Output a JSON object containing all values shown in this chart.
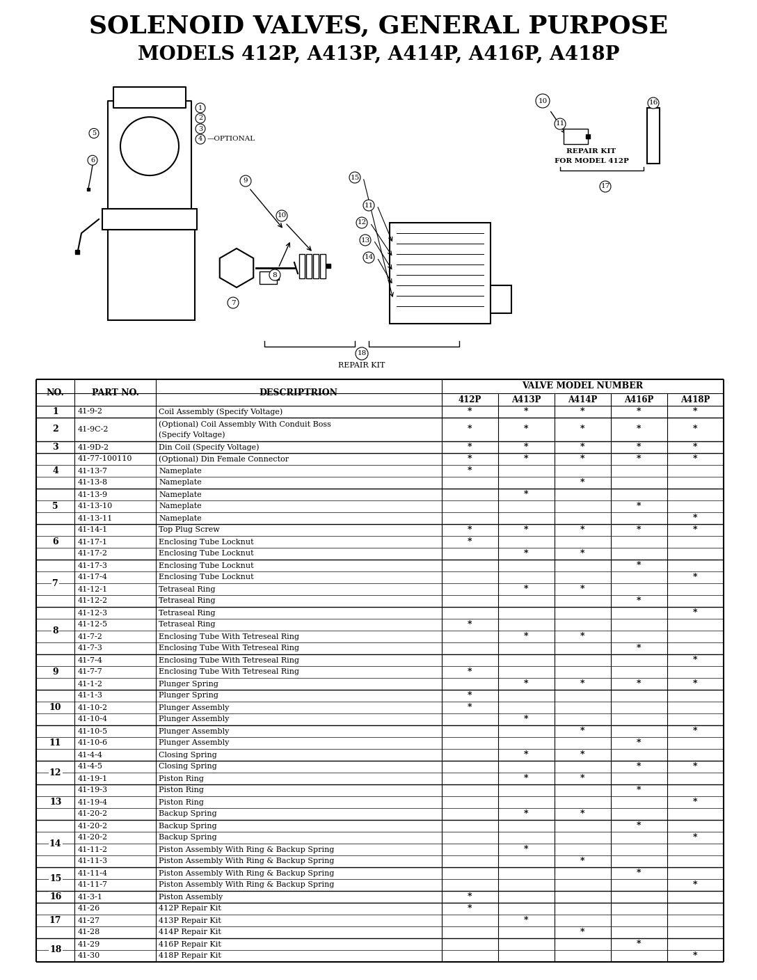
{
  "title1": "SOLENOID VALVES, GENERAL PURPOSE",
  "title2": "MODELS 412P, A413P, A414P, A416P, A418P",
  "bg_color": "#FFFFFF",
  "valve_header": "VALVE MODEL NUMBER",
  "rows": [
    [
      "1",
      "41-9-2",
      "Coil Assembly (Specify Voltage)",
      "*",
      "*",
      "*",
      "*",
      "*"
    ],
    [
      "2",
      "41-9C-2",
      "(Optional) Coil Assembly With Conduit Boss\n(Specify Voltage)",
      "*",
      "*",
      "*",
      "*",
      "*"
    ],
    [
      "3",
      "41-9D-2",
      "Din Coil (Specify Voltage)",
      "*",
      "*",
      "*",
      "*",
      "*"
    ],
    [
      "4",
      "41-77-100110",
      "(Optional) Din Female Connector",
      "*",
      "*",
      "*",
      "*",
      "*"
    ],
    [
      "",
      "41-13-7",
      "Nameplate",
      "*",
      "",
      "",
      "",
      ""
    ],
    [
      "",
      "41-13-8",
      "Nameplate",
      "",
      "",
      "*",
      "",
      ""
    ],
    [
      "5",
      "41-13-9",
      "Nameplate",
      "",
      "*",
      "",
      "",
      ""
    ],
    [
      "",
      "41-13-10",
      "Nameplate",
      "",
      "",
      "",
      "*",
      ""
    ],
    [
      "",
      "41-13-11",
      "Nameplate",
      "",
      "",
      "",
      "",
      "*"
    ],
    [
      "6",
      "41-14-1",
      "Top Plug Screw",
      "*",
      "*",
      "*",
      "*",
      "*"
    ],
    [
      "",
      "41-17-1",
      "Enclosing Tube Locknut",
      "*",
      "",
      "",
      "",
      ""
    ],
    [
      "",
      "41-17-2",
      "Enclosing Tube Locknut",
      "",
      "*",
      "*",
      "",
      ""
    ],
    [
      "7",
      "41-17-3",
      "Enclosing Tube Locknut",
      "",
      "",
      "",
      "*",
      ""
    ],
    [
      "",
      "41-17-4",
      "Enclosing Tube Locknut",
      "",
      "",
      "",
      "",
      "*"
    ],
    [
      "",
      "41-12-1",
      "Tetraseal Ring",
      "",
      "*",
      "*",
      "",
      ""
    ],
    [
      "",
      "41-12-2",
      "Tetraseal Ring",
      "",
      "",
      "",
      "*",
      ""
    ],
    [
      "8",
      "41-12-3",
      "Tetraseal Ring",
      "",
      "",
      "",
      "",
      "*"
    ],
    [
      "",
      "41-12-5",
      "Tetraseal Ring",
      "*",
      "",
      "",
      "",
      ""
    ],
    [
      "",
      "41-7-2",
      "Enclosing Tube With Tetreseal Ring",
      "",
      "*",
      "*",
      "",
      ""
    ],
    [
      "",
      "41-7-3",
      "Enclosing Tube With Tetreseal Ring",
      "",
      "",
      "",
      "*",
      ""
    ],
    [
      "9",
      "41-7-4",
      "Enclosing Tube With Tetreseal Ring",
      "",
      "",
      "",
      "",
      "*"
    ],
    [
      "",
      "41-7-7",
      "Enclosing Tube With Tetreseal Ring",
      "*",
      "",
      "",
      "",
      ""
    ],
    [
      "",
      "41-1-2",
      "Plunger Spring",
      "",
      "*",
      "*",
      "*",
      "*"
    ],
    [
      "10",
      "41-1-3",
      "Plunger Spring",
      "*",
      "",
      "",
      "",
      ""
    ],
    [
      "",
      "41-10-2",
      "Plunger Assembly",
      "*",
      "",
      "",
      "",
      ""
    ],
    [
      "",
      "41-10-4",
      "Plunger Assembly",
      "",
      "*",
      "",
      "",
      ""
    ],
    [
      "11",
      "41-10-5",
      "Plunger Assembly",
      "",
      "",
      "*",
      "",
      "*"
    ],
    [
      "",
      "41-10-6",
      "Plunger Assembly",
      "",
      "",
      "",
      "*",
      ""
    ],
    [
      "",
      "41-4-4",
      "Closing Spring",
      "",
      "*",
      "*",
      "",
      ""
    ],
    [
      "12",
      "41-4-5",
      "Closing Spring",
      "",
      "",
      "",
      "*",
      "*"
    ],
    [
      "",
      "41-19-1",
      "Piston Ring",
      "",
      "*",
      "*",
      "",
      ""
    ],
    [
      "13",
      "41-19-3",
      "Piston Ring",
      "",
      "",
      "",
      "*",
      ""
    ],
    [
      "",
      "41-19-4",
      "Piston Ring",
      "",
      "",
      "",
      "",
      "*"
    ],
    [
      "",
      "41-20-2",
      "Backup Spring",
      "",
      "*",
      "*",
      "",
      ""
    ],
    [
      "14",
      "41-20-2",
      "Backup Spring",
      "",
      "",
      "",
      "*",
      ""
    ],
    [
      "",
      "41-20-2",
      "Backup Spring",
      "",
      "",
      "",
      "",
      "*"
    ],
    [
      "",
      "41-11-2",
      "Piston Assembly With Ring & Backup Spring",
      "",
      "*",
      "",
      "",
      ""
    ],
    [
      "",
      "41-11-3",
      "Piston Assembly With Ring & Backup Spring",
      "",
      "",
      "*",
      "",
      ""
    ],
    [
      "15",
      "41-11-4",
      "Piston Assembly With Ring & Backup Spring",
      "",
      "",
      "",
      "*",
      ""
    ],
    [
      "",
      "41-11-7",
      "Piston Assembly With Ring & Backup Spring",
      "",
      "",
      "",
      "",
      "*"
    ],
    [
      "16",
      "41-3-1",
      "Piston Assembly",
      "*",
      "",
      "",
      "",
      ""
    ],
    [
      "17",
      "41-26",
      "412P Repair Kit",
      "*",
      "",
      "",
      "",
      ""
    ],
    [
      "",
      "41-27",
      "413P Repair Kit",
      "",
      "*",
      "",
      "",
      ""
    ],
    [
      "",
      "41-28",
      "414P Repair Kit",
      "",
      "",
      "*",
      "",
      ""
    ],
    [
      "18",
      "41-29",
      "416P Repair Kit",
      "",
      "",
      "",
      "*",
      ""
    ],
    [
      "",
      "41-30",
      "418P Repair Kit",
      "",
      "",
      "",
      "",
      "*"
    ]
  ]
}
